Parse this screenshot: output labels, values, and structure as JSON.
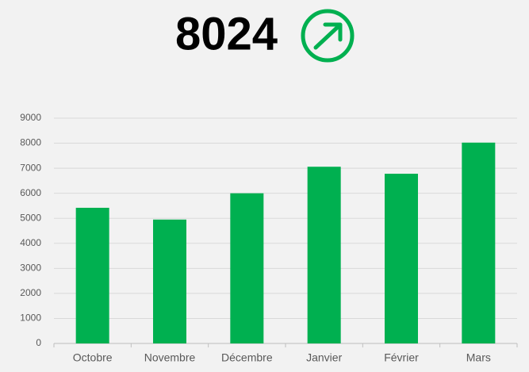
{
  "chart_data": {
    "type": "bar",
    "headline": "8024",
    "categories": [
      "Octobre",
      "Novembre",
      "Décembre",
      "Janvier",
      "Février",
      "Mars"
    ],
    "values": [
      5420,
      4950,
      6000,
      7060,
      6780,
      8024
    ],
    "color": "#00b050",
    "ylim": [
      0,
      9000
    ],
    "yticks": [
      0,
      1000,
      2000,
      3000,
      4000,
      5000,
      6000,
      7000,
      8000,
      9000
    ],
    "grid": true
  }
}
